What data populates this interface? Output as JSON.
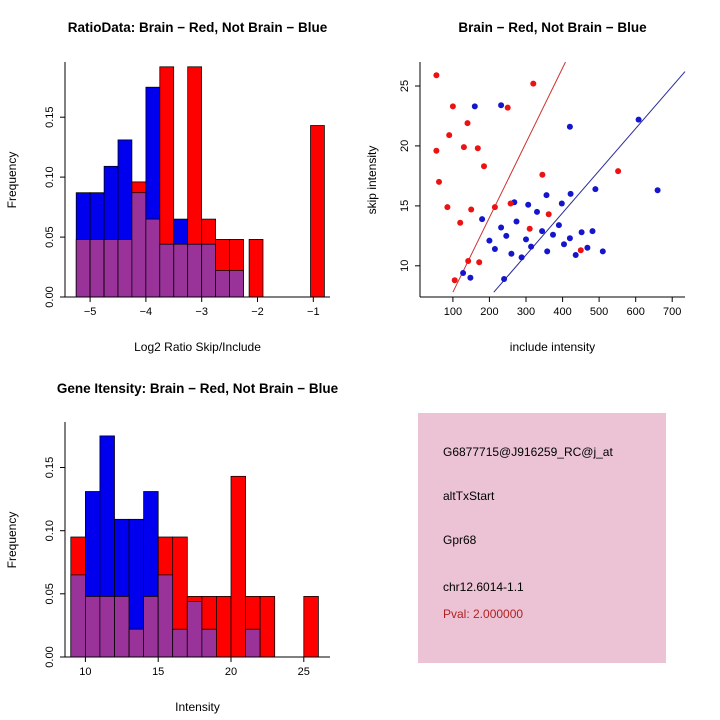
{
  "colors": {
    "red": "#FF0000",
    "blue": "#0000EE",
    "overlap": "#993399",
    "point_red": "#EE1111",
    "point_blue": "#1515CD",
    "line_red": "#CC3333",
    "line_blue": "#2A2A99",
    "axis": "#000000",
    "background": "#FFFFFF"
  },
  "chart_data": [
    {
      "type": "bar",
      "title": "RatioData: Brain − Red, Not Brain − Blue",
      "xlabel": "Log2 Ratio Skip/Include",
      "ylabel": "Frequency",
      "xlim": [
        -5.45,
        -0.7
      ],
      "ylim": [
        0,
        0.196
      ],
      "xticks": [
        -5,
        -4,
        -3,
        -2,
        -1
      ],
      "xtick_labels": [
        "−5",
        "−4",
        "−3",
        "−2",
        "−1"
      ],
      "yticks": [
        0,
        0.05,
        0.1,
        0.15
      ],
      "ytick_labels": [
        "0.00",
        "0.05",
        "0.10",
        "0.15"
      ],
      "legend": {
        "red": "Brain",
        "blue": "Not Brain"
      },
      "bin_width": 0.25,
      "bins": [
        {
          "x": -5.25,
          "red": 0.048,
          "blue": 0.087
        },
        {
          "x": -5.0,
          "red": 0.048,
          "blue": 0.087
        },
        {
          "x": -4.75,
          "red": 0.048,
          "blue": 0.109
        },
        {
          "x": -4.5,
          "red": 0.048,
          "blue": 0.131
        },
        {
          "x": -4.25,
          "red": 0.096,
          "blue": 0.087
        },
        {
          "x": -4.0,
          "red": 0.065,
          "blue": 0.175
        },
        {
          "x": -3.75,
          "red": 0.192,
          "blue": 0.044
        },
        {
          "x": -3.5,
          "red": 0.044,
          "blue": 0.065
        },
        {
          "x": -3.25,
          "red": 0.192,
          "blue": 0.044
        },
        {
          "x": -3.0,
          "red": 0.065,
          "blue": 0.044
        },
        {
          "x": -2.75,
          "red": 0.048,
          "blue": 0.022
        },
        {
          "x": -2.5,
          "red": 0.048,
          "blue": 0.022
        },
        {
          "x": -2.15,
          "red": 0.048,
          "blue": 0
        },
        {
          "x": -1.05,
          "red": 0.143,
          "blue": 0
        }
      ]
    },
    {
      "type": "scatter",
      "title": "Brain − Red, Not Brain − Blue",
      "xlabel": "include intensity",
      "ylabel": "skip intensity",
      "xlim": [
        10,
        735
      ],
      "ylim": [
        7.4,
        27
      ],
      "xticks": [
        100,
        200,
        300,
        400,
        500,
        600,
        700
      ],
      "xtick_labels": [
        "100",
        "200",
        "300",
        "400",
        "500",
        "600",
        "700"
      ],
      "yticks": [
        10,
        15,
        20,
        25
      ],
      "ytick_labels": [
        "10",
        "15",
        "20",
        "25"
      ],
      "red_points": [
        [
          55,
          25.9
        ],
        [
          100,
          23.3
        ],
        [
          140,
          21.9
        ],
        [
          90,
          20.9
        ],
        [
          55,
          19.6
        ],
        [
          130,
          19.9
        ],
        [
          168,
          19.8
        ],
        [
          185,
          18.3
        ],
        [
          62,
          17.0
        ],
        [
          250,
          23.2
        ],
        [
          320,
          25.2
        ],
        [
          85,
          14.9
        ],
        [
          120,
          13.6
        ],
        [
          150,
          14.7
        ],
        [
          105,
          8.8
        ],
        [
          142,
          10.4
        ],
        [
          172,
          10.3
        ],
        [
          215,
          14.9
        ],
        [
          258,
          15.2
        ],
        [
          310,
          13.1
        ],
        [
          345,
          17.6
        ],
        [
          362,
          14.3
        ],
        [
          450,
          11.3
        ],
        [
          552,
          17.9
        ]
      ],
      "blue_points": [
        [
          160,
          23.3
        ],
        [
          232,
          23.4
        ],
        [
          420,
          21.6
        ],
        [
          608,
          22.2
        ],
        [
          660,
          16.3
        ],
        [
          490,
          16.4
        ],
        [
          422,
          16.0
        ],
        [
          180,
          13.9
        ],
        [
          200,
          12.1
        ],
        [
          215,
          11.4
        ],
        [
          232,
          13.2
        ],
        [
          246,
          12.5
        ],
        [
          260,
          11.0
        ],
        [
          274,
          13.7
        ],
        [
          288,
          10.7
        ],
        [
          300,
          12.2
        ],
        [
          314,
          11.6
        ],
        [
          330,
          14.5
        ],
        [
          344,
          12.9
        ],
        [
          358,
          11.2
        ],
        [
          374,
          12.6
        ],
        [
          390,
          13.4
        ],
        [
          404,
          11.8
        ],
        [
          420,
          12.3
        ],
        [
          436,
          10.9
        ],
        [
          452,
          12.8
        ],
        [
          468,
          11.5
        ],
        [
          482,
          12.9
        ],
        [
          510,
          11.2
        ],
        [
          148,
          9.0
        ],
        [
          128,
          9.4
        ],
        [
          268,
          15.3
        ],
        [
          306,
          15.1
        ],
        [
          356,
          15.9
        ],
        [
          398,
          15.2
        ],
        [
          240,
          8.9
        ]
      ],
      "red_line": {
        "x1": 100,
        "y1": 7.8,
        "x2": 408,
        "y2": 27
      },
      "blue_line": {
        "x1": 212,
        "y1": 7.8,
        "x2": 735,
        "y2": 26.2
      }
    },
    {
      "type": "bar",
      "title": "Gene Itensity: Brain − Red, Not Brain − Blue",
      "xlabel": "Intensity",
      "ylabel": "Frequency",
      "xlim": [
        8.6,
        26.8
      ],
      "ylim": [
        0,
        0.186
      ],
      "xticks": [
        10,
        15,
        20,
        25
      ],
      "xtick_labels": [
        "10",
        "15",
        "20",
        "25"
      ],
      "yticks": [
        0,
        0.05,
        0.1,
        0.15
      ],
      "ytick_labels": [
        "0.00",
        "0.05",
        "0.10",
        "0.15"
      ],
      "legend": {
        "red": "Brain",
        "blue": "Not Brain"
      },
      "bin_width": 1,
      "bins": [
        {
          "x": 9,
          "red": 0.095,
          "blue": 0.065
        },
        {
          "x": 10,
          "red": 0.048,
          "blue": 0.131
        },
        {
          "x": 11,
          "red": 0.048,
          "blue": 0.175
        },
        {
          "x": 12,
          "red": 0.048,
          "blue": 0.109
        },
        {
          "x": 13,
          "red": 0.022,
          "blue": 0.109
        },
        {
          "x": 14,
          "red": 0.048,
          "blue": 0.131
        },
        {
          "x": 15,
          "red": 0.095,
          "blue": 0.065
        },
        {
          "x": 16,
          "red": 0.095,
          "blue": 0.022
        },
        {
          "x": 17,
          "red": 0.048,
          "blue": 0.044
        },
        {
          "x": 18,
          "red": 0.048,
          "blue": 0.022
        },
        {
          "x": 19,
          "red": 0.048,
          "blue": 0
        },
        {
          "x": 20,
          "red": 0.143,
          "blue": 0
        },
        {
          "x": 21,
          "red": 0.048,
          "blue": 0.022
        },
        {
          "x": 22,
          "red": 0.048,
          "blue": 0
        },
        {
          "x": 25,
          "red": 0.048,
          "blue": 0
        }
      ]
    }
  ],
  "info_panel": {
    "bg": "#EBC3D5",
    "lines": [
      {
        "text": "G6877715@J916259_RC@j_at",
        "color": "#000000"
      },
      {
        "text": "altTxStart",
        "color": "#000000"
      },
      {
        "text": "Gpr68",
        "color": "#000000"
      },
      {
        "text": "chr12.6014-1.1",
        "color": "#000000"
      },
      {
        "text": "Pval: 2.000000",
        "color": "#B22222"
      }
    ]
  }
}
